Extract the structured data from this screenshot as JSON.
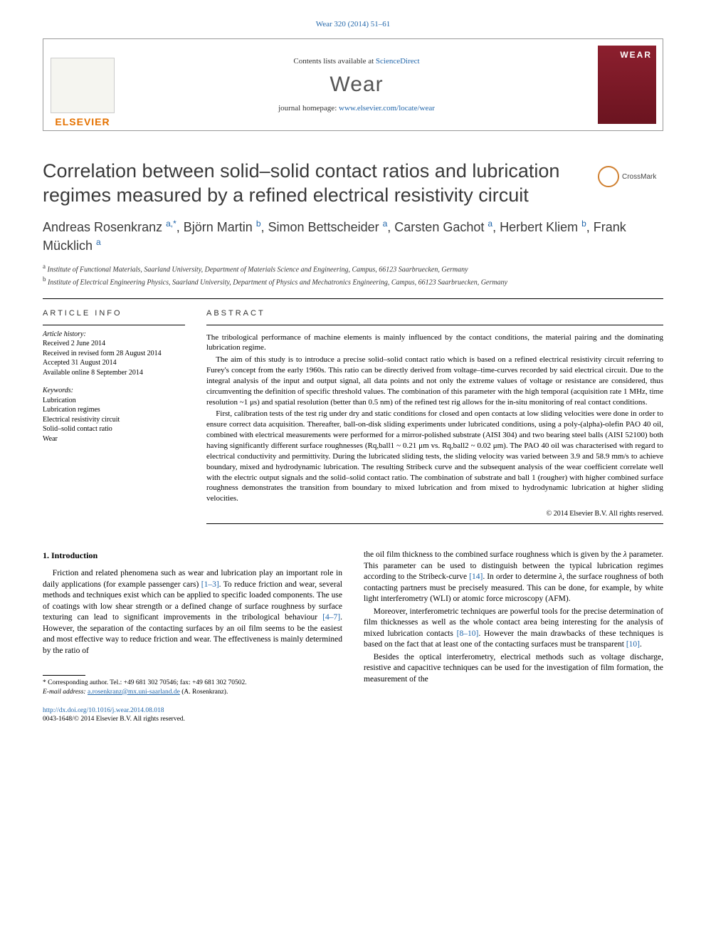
{
  "journal_ref": "Wear 320 (2014) 51–61",
  "header": {
    "contents_prefix": "Contents lists available at ",
    "contents_link": "ScienceDirect",
    "journal": "Wear",
    "homepage_prefix": "journal homepage: ",
    "homepage_url": "www.elsevier.com/locate/wear",
    "publisher": "ELSEVIER",
    "cover_label": "WEAR"
  },
  "crossmark": "CrossMark",
  "title": "Correlation between solid–solid contact ratios and lubrication regimes measured by a refined electrical resistivity circuit",
  "authors_html": "Andreas Rosenkranz <sup class='aff'>a,*</sup>, Björn Martin <sup class='aff'>b</sup>, Simon Bettscheider <sup class='aff'>a</sup>, Carsten Gachot <sup class='aff'>a</sup>, Herbert Kliem <sup class='aff'>b</sup>, Frank Mücklich <sup class='aff'>a</sup>",
  "affiliations": {
    "a": "Institute of Functional Materials, Saarland University, Department of Materials Science and Engineering, Campus, 66123 Saarbruecken, Germany",
    "b": "Institute of Electrical Engineering Physics, Saarland University, Department of Physics and Mechatronics Engineering, Campus, 66123 Saarbruecken, Germany"
  },
  "article_info": {
    "heading": "ARTICLE INFO",
    "history_label": "Article history:",
    "received": "Received 2 June 2014",
    "revised": "Received in revised form 28 August 2014",
    "accepted": "Accepted 31 August 2014",
    "online": "Available online 8 September 2014",
    "keywords_label": "Keywords:",
    "keywords": [
      "Lubrication",
      "Lubrication regimes",
      "Electrical resistivity circuit",
      "Solid–solid contact ratio",
      "Wear"
    ]
  },
  "abstract": {
    "heading": "ABSTRACT",
    "paragraphs": [
      "The tribological performance of machine elements is mainly influenced by the contact conditions, the material pairing and the dominating lubrication regime.",
      "The aim of this study is to introduce a precise solid–solid contact ratio which is based on a refined electrical resistivity circuit referring to Furey's concept from the early 1960s. This ratio can be directly derived from voltage–time-curves recorded by said electrical circuit. Due to the integral analysis of the input and output signal, all data points and not only the extreme values of voltage or resistance are considered, thus circumventing the definition of specific threshold values. The combination of this parameter with the high temporal (acquisition rate 1 MHz, time resolution ~1 μs) and spatial resolution (better than 0.5 nm) of the refined test rig allows for the in-situ monitoring of real contact conditions.",
      "First, calibration tests of the test rig under dry and static conditions for closed and open contacts at low sliding velocities were done in order to ensure correct data acquisition. Thereafter, ball-on-disk sliding experiments under lubricated conditions, using a poly-(alpha)-olefin PAO 40 oil, combined with electrical measurements were performed for a mirror-polished substrate (AISI 304) and two bearing steel balls (AISI 52100) both having significantly different surface roughnesses (Rq,ball1 ~ 0.21 μm vs. Rq,ball2 ~ 0.02 μm). The PAO 40 oil was characterised with regard to electrical conductivity and permittivity. During the lubricated sliding tests, the sliding velocity was varied between 3.9 and 58.9 mm/s to achieve boundary, mixed and hydrodynamic lubrication. The resulting Stribeck curve and the subsequent analysis of the wear coefficient correlate well with the electric output signals and the solid–solid contact ratio. The combination of substrate and ball 1 (rougher) with higher combined surface roughness demonstrates the transition from boundary to mixed lubrication and from mixed to hydrodynamic lubrication at higher sliding velocities."
    ],
    "copyright": "© 2014 Elsevier B.V. All rights reserved."
  },
  "section1": {
    "heading": "1.  Introduction",
    "col1": [
      "Friction and related phenomena such as wear and lubrication play an important role in daily applications (for example passenger cars) <span class='cite'>[1–3]</span>. To reduce friction and wear, several methods and techniques exist which can be applied to specific loaded components. The use of coatings with low shear strength or a defined change of surface roughness by surface texturing can lead to significant improvements in the tribological behaviour <span class='cite'>[4–7]</span>. However, the separation of the contacting surfaces by an oil film seems to be the easiest and most effective way to reduce friction and wear. The effectiveness is mainly determined by the ratio of"
    ],
    "col2": [
      "the oil film thickness to the combined surface roughness which is given by the <span class='ital'>λ</span> parameter. This parameter can be used to distinguish between the typical lubrication regimes according to the Stribeck-curve <span class='cite'>[14]</span>. In order to determine <span class='ital'>λ</span>, the surface roughness of both contacting partners must be precisely measured. This can be done, for example, by white light interferometry (WLI) or atomic force microscopy (AFM).",
      "Moreover, interferometric techniques are powerful tools for the precise determination of film thicknesses as well as the whole contact area being interesting for the analysis of mixed lubrication contacts <span class='cite'>[8–10]</span>. However the main drawbacks of these techniques is based on the fact that at least one of the contacting surfaces must be transparent <span class='cite'>[10]</span>.",
      "Besides the optical interferometry, electrical methods such as voltage discharge, resistive and capacitive techniques can be used for the investigation of film formation, the measurement of the"
    ]
  },
  "footnotes": {
    "corr": "* Corresponding author. Tel.: +49 681 302 70546; fax: +49 681 302 70502.",
    "email_label": "E-mail address: ",
    "email": "a.rosenkranz@mx.uni-saarland.de",
    "email_suffix": " (A. Rosenkranz)."
  },
  "doi": {
    "url": "http://dx.doi.org/10.1016/j.wear.2014.08.018",
    "issn_line": "0043-1648/© 2014 Elsevier B.V. All rights reserved."
  }
}
